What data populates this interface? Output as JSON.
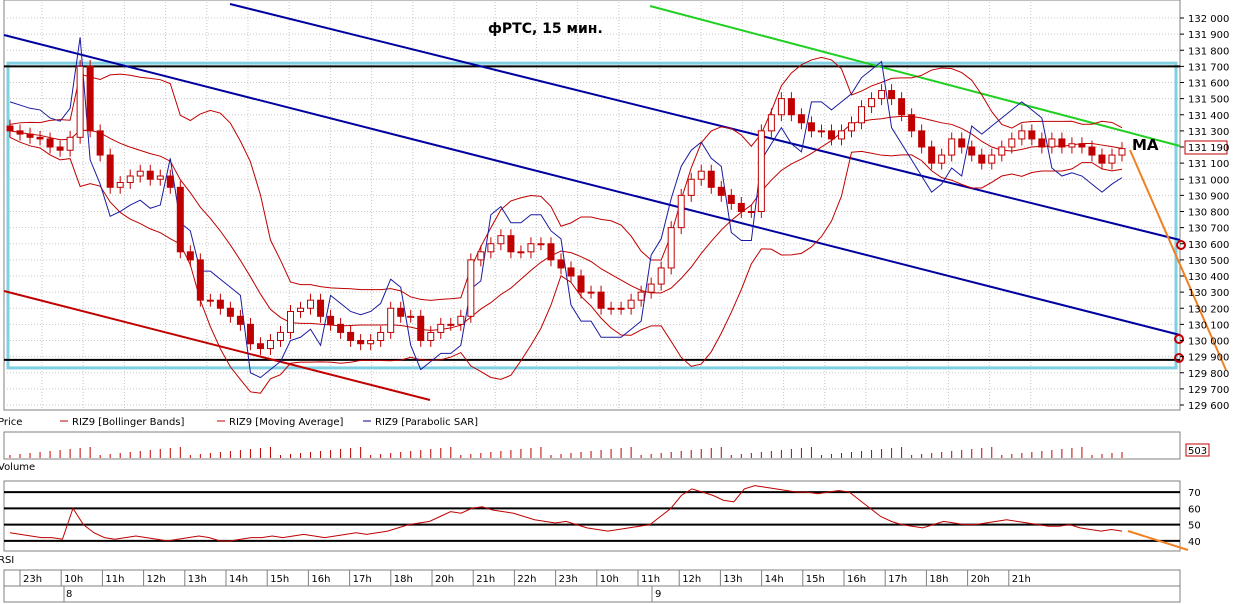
{
  "chart_data": {
    "type": "candlestick",
    "title": "фРТС,  15 мин.",
    "annotation_ma": "MA",
    "price_axis": {
      "ticks": [
        "132 000",
        "131 900",
        "131 800",
        "131 700",
        "131 600",
        "131 500",
        "131 400",
        "131 300",
        "131 200",
        "131 100",
        "131 000",
        "130 900",
        "130 800",
        "130 700",
        "130 600",
        "130 500",
        "130 400",
        "130 300",
        "130 200",
        "130 100",
        "130 000",
        "129 900",
        "129 800",
        "129 700",
        "129 600"
      ],
      "range": [
        129600,
        132000
      ],
      "last_price_label": "131 190",
      "last_price": 131190
    },
    "legend": [
      {
        "label": "Price",
        "color": "#000000"
      },
      {
        "label": "RIZ9 [Bollinger Bands]",
        "color": "#c00000"
      },
      {
        "label": "RIZ9 [Moving Average]",
        "color": "#c00000"
      },
      {
        "label": "RIZ9 [Parabolic SAR]",
        "color": "#00008b"
      }
    ],
    "volume": {
      "label": "Volume",
      "last_label": "503"
    },
    "rsi": {
      "label": "RSI",
      "ticks": [
        "70",
        "60",
        "50",
        "40"
      ],
      "range": [
        35,
        75
      ],
      "levels": [
        70,
        60,
        50,
        40
      ]
    },
    "time_axis": {
      "labels": [
        "23h",
        "10h",
        "11h",
        "12h",
        "13h",
        "14h",
        "15h",
        "16h",
        "17h",
        "18h",
        "20h",
        "21h",
        "22h",
        "23h",
        "10h",
        "11h",
        "12h",
        "13h",
        "14h",
        "15h",
        "16h",
        "17h",
        "18h",
        "20h",
        "21h"
      ],
      "dates": [
        "8",
        "9"
      ]
    },
    "horizontal_levels": [
      131700,
      129880
    ],
    "channel_box": {
      "top": 131720,
      "bottom": 129830
    },
    "candles_close": [
      131300,
      131280,
      131260,
      131250,
      131200,
      131180,
      131260,
      131700,
      131300,
      131150,
      130950,
      130980,
      131020,
      131050,
      131000,
      131020,
      130950,
      130550,
      130500,
      130250,
      130250,
      130200,
      130150,
      130100,
      129980,
      129950,
      130000,
      130050,
      130180,
      130200,
      130250,
      130150,
      130100,
      130050,
      130000,
      129980,
      130000,
      130050,
      130200,
      130150,
      130150,
      130000,
      130050,
      130100,
      130100,
      130150,
      130500,
      130550,
      130600,
      130650,
      130550,
      130550,
      130600,
      130600,
      130500,
      130450,
      130400,
      130300,
      130300,
      130200,
      130200,
      130200,
      130250,
      130300,
      130350,
      130450,
      130700,
      130900,
      131000,
      131050,
      130950,
      130900,
      130850,
      130800,
      130800,
      131300,
      131400,
      131500,
      131400,
      131350,
      131300,
      131300,
      131250,
      131300,
      131350,
      131450,
      131500,
      131550,
      131500,
      131400,
      131300,
      131200,
      131100,
      131150,
      131250,
      131200,
      131150,
      131100,
      131150,
      131200,
      131250,
      131300,
      131250,
      131200,
      131250,
      131200,
      131220,
      131200,
      131150,
      131100,
      131150,
      131190
    ],
    "rsi_values": [
      45,
      44,
      43,
      42,
      42,
      41,
      60,
      50,
      45,
      42,
      41,
      42,
      43,
      42,
      41,
      40,
      41,
      42,
      43,
      42,
      40,
      40,
      41,
      42,
      42,
      43,
      42,
      43,
      44,
      43,
      42,
      43,
      44,
      45,
      44,
      45,
      46,
      48,
      50,
      51,
      52,
      55,
      58,
      57,
      60,
      61,
      59,
      58,
      57,
      55,
      53,
      52,
      51,
      52,
      50,
      48,
      47,
      46,
      47,
      48,
      49,
      50,
      55,
      60,
      68,
      72,
      70,
      68,
      65,
      64,
      72,
      74,
      73,
      72,
      71,
      70,
      70,
      69,
      70,
      71,
      70,
      65,
      60,
      55,
      52,
      50,
      49,
      48,
      50,
      52,
      51,
      50,
      50,
      51,
      52,
      53,
      52,
      51,
      50,
      49,
      49,
      50,
      48,
      47,
      46,
      47,
      46
    ]
  }
}
